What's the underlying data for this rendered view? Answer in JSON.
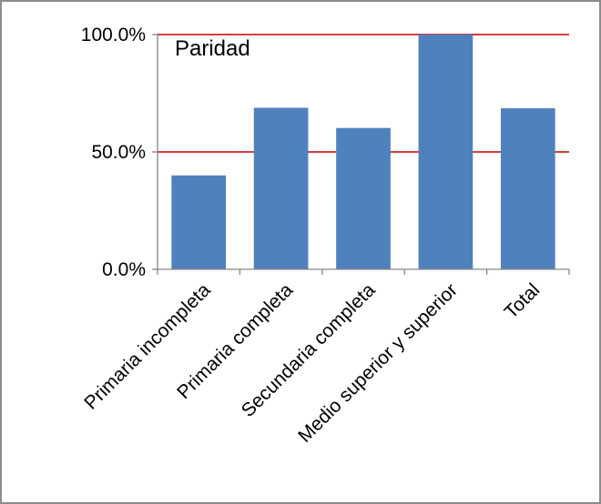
{
  "chart_data": {
    "type": "bar",
    "categories": [
      "Primaria incompleta",
      "Primaria completa",
      "Secundaria completa",
      "Medio superior y superior",
      "Total"
    ],
    "values": [
      40.0,
      68.8,
      60.2,
      100.0,
      68.6
    ],
    "ylim": [
      0,
      100
    ],
    "y_ticks": [
      0,
      50,
      100
    ],
    "y_tick_labels": [
      "0.0%",
      "50.0%",
      "100.0%"
    ],
    "reference_lines": [
      50,
      100
    ],
    "annotation": "Paridad",
    "grid": false,
    "legend": "none",
    "colors": {
      "bar": "#4f81bd",
      "reference_line": "#c00000",
      "axis": "#868686"
    }
  }
}
